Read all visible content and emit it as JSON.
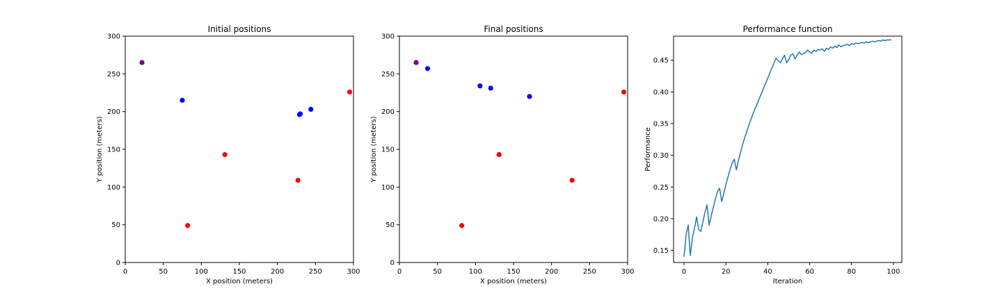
{
  "chart_data": [
    {
      "type": "scatter",
      "title": "Initial positions",
      "xlabel": "X position (meters)",
      "ylabel": "Y position (meters)",
      "xlim": [
        0,
        300
      ],
      "ylim": [
        0,
        300
      ],
      "xticks": [
        0,
        50,
        100,
        150,
        200,
        250,
        300
      ],
      "yticks": [
        0,
        50,
        100,
        150,
        200,
        250,
        300
      ],
      "grid": false,
      "series": [
        {
          "color": "#800080",
          "x": [
            22
          ],
          "y": [
            265
          ]
        },
        {
          "color": "#0000ff",
          "x": [
            75,
            229,
            230,
            244
          ],
          "y": [
            215,
            196,
            197,
            203
          ]
        },
        {
          "color": "#ff0000",
          "x": [
            82,
            131,
            227,
            295
          ],
          "y": [
            49,
            143,
            109,
            226
          ]
        }
      ]
    },
    {
      "type": "scatter",
      "title": "Final positions",
      "xlabel": "X position (meters)",
      "ylabel": "Y position (meters)",
      "xlim": [
        0,
        300
      ],
      "ylim": [
        0,
        300
      ],
      "xticks": [
        0,
        50,
        100,
        150,
        200,
        250,
        300
      ],
      "yticks": [
        0,
        50,
        100,
        150,
        200,
        250,
        300
      ],
      "grid": false,
      "series": [
        {
          "color": "#800080",
          "x": [
            22
          ],
          "y": [
            265
          ]
        },
        {
          "color": "#0000ff",
          "x": [
            37,
            106,
            120,
            171
          ],
          "y": [
            257,
            234,
            231,
            220
          ]
        },
        {
          "color": "#ff0000",
          "x": [
            82,
            131,
            227,
            295
          ],
          "y": [
            49,
            143,
            109,
            226
          ]
        }
      ]
    },
    {
      "type": "line",
      "title": "Performance function",
      "xlabel": "Iteration",
      "ylabel": "Performance",
      "xlim": [
        -5,
        104
      ],
      "ylim": [
        0.131,
        0.488
      ],
      "xticks": [
        0,
        20,
        40,
        60,
        80,
        100
      ],
      "yticks": [
        0.15,
        0.2,
        0.25,
        0.3,
        0.35,
        0.4,
        0.45
      ],
      "yticklabels": [
        "0.15",
        "0.20",
        "0.25",
        "0.30",
        "0.35",
        "0.40",
        "0.45"
      ],
      "grid": false,
      "series": [
        {
          "color": "#1f77b4",
          "x": [
            0,
            1,
            2,
            3,
            4,
            5,
            6,
            7,
            8,
            9,
            10,
            11,
            12,
            13,
            14,
            15,
            16,
            17,
            18,
            19,
            20,
            21,
            22,
            23,
            24,
            25,
            26,
            27,
            28,
            29,
            30,
            31,
            32,
            33,
            34,
            35,
            36,
            37,
            38,
            39,
            40,
            41,
            42,
            43,
            44,
            45,
            46,
            47,
            48,
            49,
            50,
            51,
            52,
            53,
            54,
            55,
            56,
            57,
            58,
            59,
            60,
            61,
            62,
            63,
            64,
            65,
            66,
            67,
            68,
            69,
            70,
            71,
            72,
            73,
            74,
            75,
            76,
            77,
            78,
            79,
            80,
            81,
            82,
            83,
            84,
            85,
            86,
            87,
            88,
            89,
            90,
            91,
            92,
            93,
            94,
            95,
            96,
            97,
            98,
            99
          ],
          "y": [
            0.14,
            0.175,
            0.19,
            0.142,
            0.17,
            0.185,
            0.203,
            0.183,
            0.18,
            0.195,
            0.21,
            0.222,
            0.19,
            0.205,
            0.218,
            0.231,
            0.243,
            0.248,
            0.227,
            0.24,
            0.254,
            0.266,
            0.278,
            0.288,
            0.294,
            0.277,
            0.292,
            0.305,
            0.317,
            0.328,
            0.338,
            0.348,
            0.357,
            0.366,
            0.374,
            0.382,
            0.39,
            0.398,
            0.406,
            0.414,
            0.422,
            0.43,
            0.438,
            0.446,
            0.453,
            0.449,
            0.446,
            0.452,
            0.458,
            0.446,
            0.451,
            0.458,
            0.46,
            0.452,
            0.458,
            0.463,
            0.459,
            0.46,
            0.462,
            0.466,
            0.463,
            0.461,
            0.466,
            0.464,
            0.467,
            0.466,
            0.468,
            0.464,
            0.469,
            0.467,
            0.471,
            0.469,
            0.472,
            0.47,
            0.474,
            0.471,
            0.473,
            0.474,
            0.475,
            0.473,
            0.476,
            0.475,
            0.477,
            0.476,
            0.477,
            0.478,
            0.477,
            0.479,
            0.478,
            0.479,
            0.48,
            0.479,
            0.48,
            0.481,
            0.48,
            0.482,
            0.481,
            0.482,
            0.482,
            0.482
          ]
        }
      ]
    }
  ]
}
